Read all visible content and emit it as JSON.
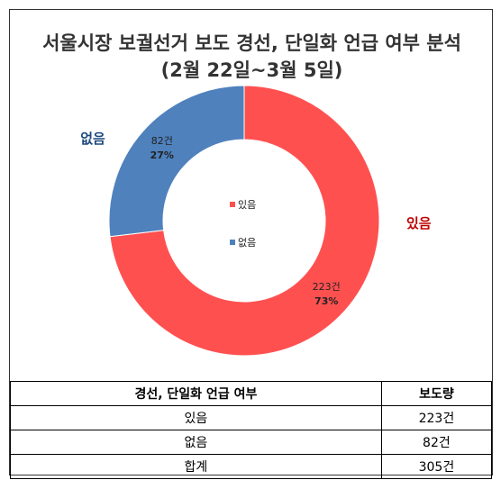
{
  "chart_data": {
    "type": "donut",
    "title_line1": "서울시장 보궐선거 보도 경선, 단일화 언급 여부 분석",
    "title_line2": "(2월 22일~3월 5일)",
    "slices": [
      {
        "name": "있음",
        "count_label": "223건",
        "pct_label": "73%",
        "value": 223,
        "color": "#ff5050",
        "label_color": "#c00000"
      },
      {
        "name": "없음",
        "count_label": "82건",
        "pct_label": "27%",
        "value": 82,
        "color": "#4f81bd",
        "label_color": "#1f497d"
      }
    ],
    "legend": [
      "있음",
      "없음"
    ],
    "legend_placement": "center"
  },
  "table": {
    "headers": [
      "경선, 단일화 언급 여부",
      "보도량"
    ],
    "rows": [
      [
        "있음",
        "223건"
      ],
      [
        "없음",
        "82건"
      ],
      [
        "합계",
        "305건"
      ]
    ]
  }
}
